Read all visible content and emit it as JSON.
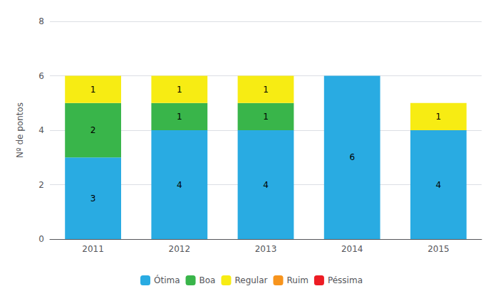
{
  "chart_data": {
    "type": "bar",
    "stacked": true,
    "ylabel": "Nº de pontos",
    "categories": [
      "2011",
      "2012",
      "2013",
      "2014",
      "2015"
    ],
    "series": [
      {
        "name": "Ótima",
        "color": "#29ABE2",
        "values": [
          3,
          4,
          4,
          6,
          4
        ]
      },
      {
        "name": "Boa",
        "color": "#39B54A",
        "values": [
          2,
          1,
          1,
          0,
          0
        ]
      },
      {
        "name": "Regular",
        "color": "#F7EC13",
        "values": [
          1,
          1,
          1,
          0,
          1
        ]
      },
      {
        "name": "Ruim",
        "color": "#F7941D",
        "values": [
          0,
          0,
          0,
          0,
          0
        ]
      },
      {
        "name": "Péssima",
        "color": "#ED1C24",
        "values": [
          0,
          0,
          0,
          0,
          0
        ]
      }
    ],
    "ylim": [
      0,
      8
    ],
    "yticks": [
      0,
      2,
      4,
      6,
      8
    ],
    "grid": true,
    "legend": "bottom",
    "data_labels": true
  }
}
